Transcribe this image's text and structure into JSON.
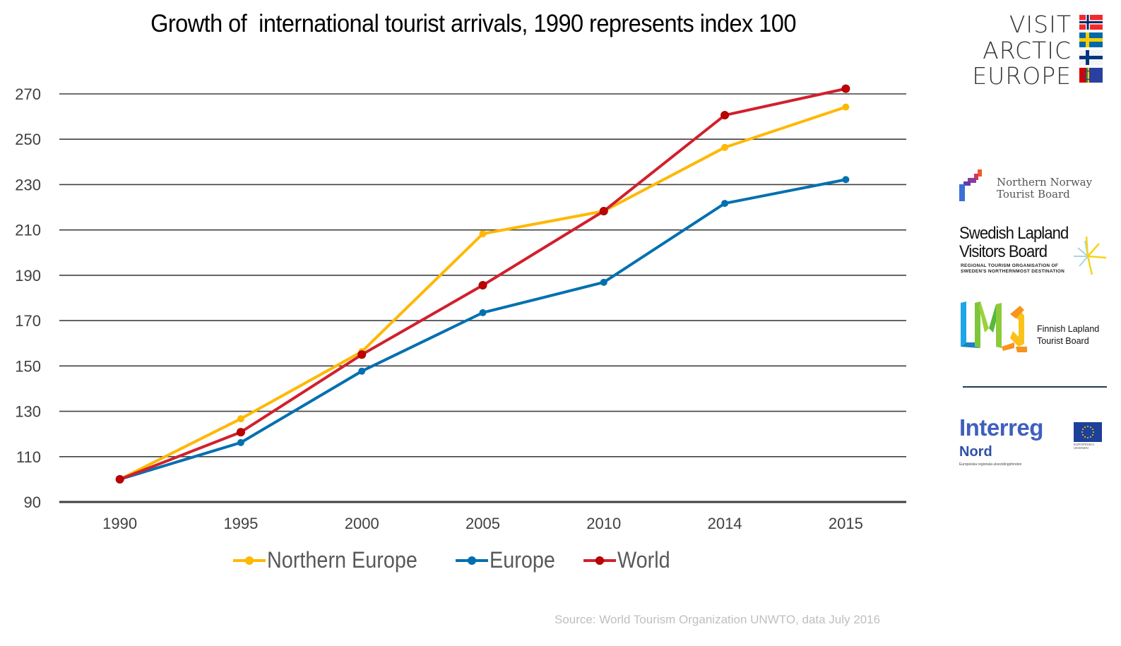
{
  "chart_data": {
    "type": "line",
    "title": "Growth of  international tourist arrivals, 1990 represents index 100",
    "xlabel": "",
    "ylabel": "",
    "categories": [
      "1990",
      "1995",
      "2000",
      "2005",
      "2010",
      "2014",
      "2015"
    ],
    "yticks": [
      90,
      110,
      130,
      150,
      170,
      190,
      210,
      230,
      250,
      270
    ],
    "ylim": [
      90,
      270
    ],
    "grid": true,
    "legend_position": "bottom",
    "series": [
      {
        "name": "Northern Europe",
        "color": "#FFB800",
        "values": [
          100,
          126.7,
          156.3,
          208.3,
          218.3,
          246.4,
          264.2
        ]
      },
      {
        "name": "Europe",
        "color": "#0070B0",
        "values": [
          100,
          116.2,
          147.7,
          173.5,
          186.9,
          221.7,
          232.2
        ]
      },
      {
        "name": "World",
        "color": "#D0202E",
        "values": [
          100,
          120.8,
          155.0,
          185.6,
          218.3,
          260.6,
          272.3
        ]
      }
    ],
    "source": "Source: World Tourism Organization UNWTO, data July 2016"
  },
  "logos": {
    "visit_arctic_europe": {
      "lines": [
        "VISIT",
        "ARCTIC",
        "EUROPE"
      ],
      "flags": [
        "norway-flag",
        "sweden-flag",
        "finland-flag",
        "sami-flag"
      ]
    },
    "northern_norway": {
      "line1": "Northern Norway",
      "line2": "Tourist Board"
    },
    "swedish_lapland": {
      "line1": "Swedish Lapland",
      "line2": "Visitors Board",
      "sub1": "REGIONAL TOURISM ORGANISATION OF",
      "sub2": "SWEDEN'S NORTHERNMOST DESTINATION"
    },
    "finnish_lapland": {
      "line1": "Finnish Lapland",
      "line2": "Tourist Board"
    },
    "interreg": {
      "title": "Interreg",
      "sub": "Nord",
      "fund": "Europeiska regionala utvecklingsfonden",
      "eu1": "EUROPEISKA",
      "eu2": "UNIONEN"
    }
  }
}
